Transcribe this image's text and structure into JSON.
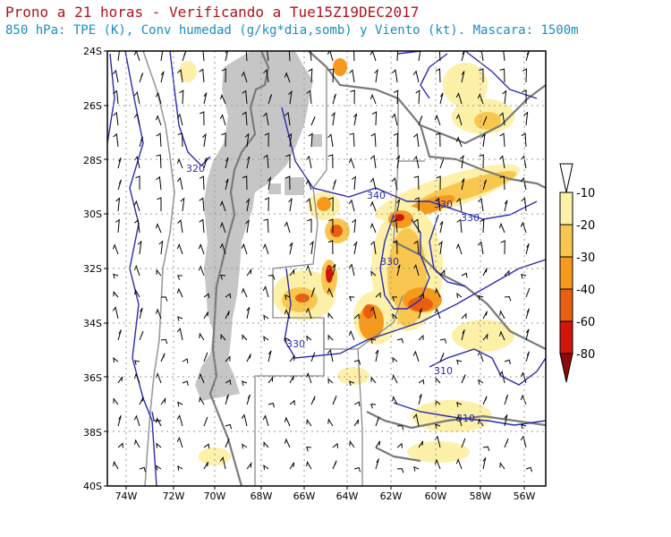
{
  "title": "Prono a 21 horas - Verificando a Tue15Z19DEC2017",
  "subtitle": "850 hPa: TPE (K), Conv humedad (g/kg*dia,somb) y Viento (kt). Mascara: 1500m",
  "map": {
    "lat_labels": [
      "24S",
      "26S",
      "28S",
      "30S",
      "32S",
      "34S",
      "36S",
      "38S",
      "40S"
    ],
    "lon_labels": [
      "74W",
      "72W",
      "70W",
      "68W",
      "66W",
      "64W",
      "62W",
      "60W",
      "58W",
      "56W"
    ],
    "contour_labels": [
      "320",
      "340",
      "330",
      "330",
      "330",
      "330",
      "310",
      "310"
    ]
  },
  "colorbar": {
    "levels": [
      "-10",
      "-20",
      "-30",
      "-40",
      "-60",
      "-80"
    ],
    "colors": [
      "#ffffff",
      "#fdf0a8",
      "#f9c74f",
      "#f59a1c",
      "#e8600f",
      "#d2150a",
      "#8e0a0a"
    ]
  },
  "colors": {
    "mask": "#c6c6c6",
    "contour": "#2b2bb0",
    "border": "#7a7a7a",
    "title": "#b3121b",
    "subtitle": "#1a8cc4"
  }
}
